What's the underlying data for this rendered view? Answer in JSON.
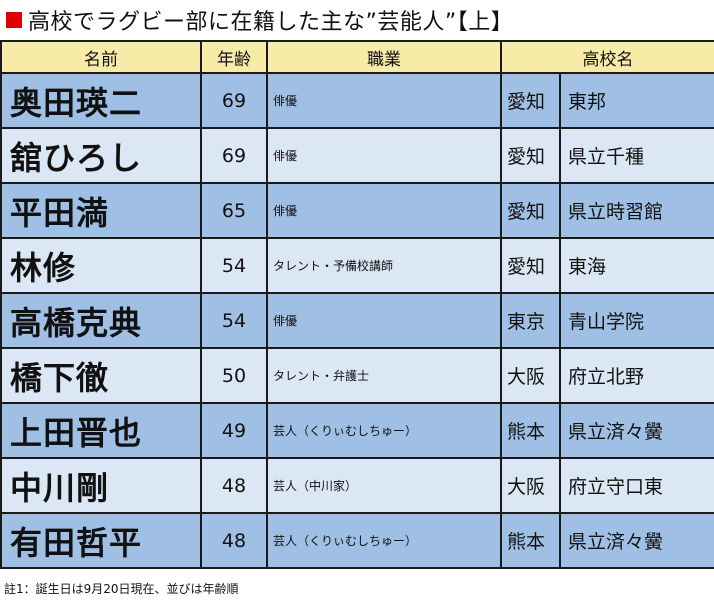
{
  "title": "高校でラグビー部に在籍した主な”芸能人”【上】",
  "headers": {
    "name": "名前",
    "age": "年齢",
    "job": "職業",
    "school": "高校名"
  },
  "rows": [
    {
      "name": "奥田瑛二",
      "age": "69",
      "job": "俳優",
      "pref": "愛知",
      "school": "東邦"
    },
    {
      "name": "舘ひろし",
      "age": "69",
      "job": "俳優",
      "pref": "愛知",
      "school": "県立千種"
    },
    {
      "name": "平田満",
      "age": "65",
      "job": "俳優",
      "pref": "愛知",
      "school": "県立時習館"
    },
    {
      "name": "林修",
      "age": "54",
      "job": "タレント・予備校講師",
      "pref": "愛知",
      "school": "東海"
    },
    {
      "name": "高橋克典",
      "age": "54",
      "job": "俳優",
      "pref": "東京",
      "school": "青山学院"
    },
    {
      "name": "橋下徹",
      "age": "50",
      "job": "タレント・弁護士",
      "pref": "大阪",
      "school": "府立北野"
    },
    {
      "name": "上田晋也",
      "age": "49",
      "job": "芸人（くりぃむしちゅー）",
      "pref": "熊本",
      "school": "県立済々黌"
    },
    {
      "name": "中川剛",
      "age": "48",
      "job": "芸人（中川家）",
      "pref": "大阪",
      "school": "府立守口東"
    },
    {
      "name": "有田哲平",
      "age": "48",
      "job": "芸人（くりぃむしちゅー）",
      "pref": "熊本",
      "school": "県立済々黌"
    }
  ],
  "footnote": "註1：誕生日は9月20日現在、並びは年齢順",
  "colors": {
    "header_bg": "#f7eba8",
    "row_dark": "#9fc0e4",
    "row_light": "#dbe7f4",
    "title_mark": "#e00000"
  }
}
